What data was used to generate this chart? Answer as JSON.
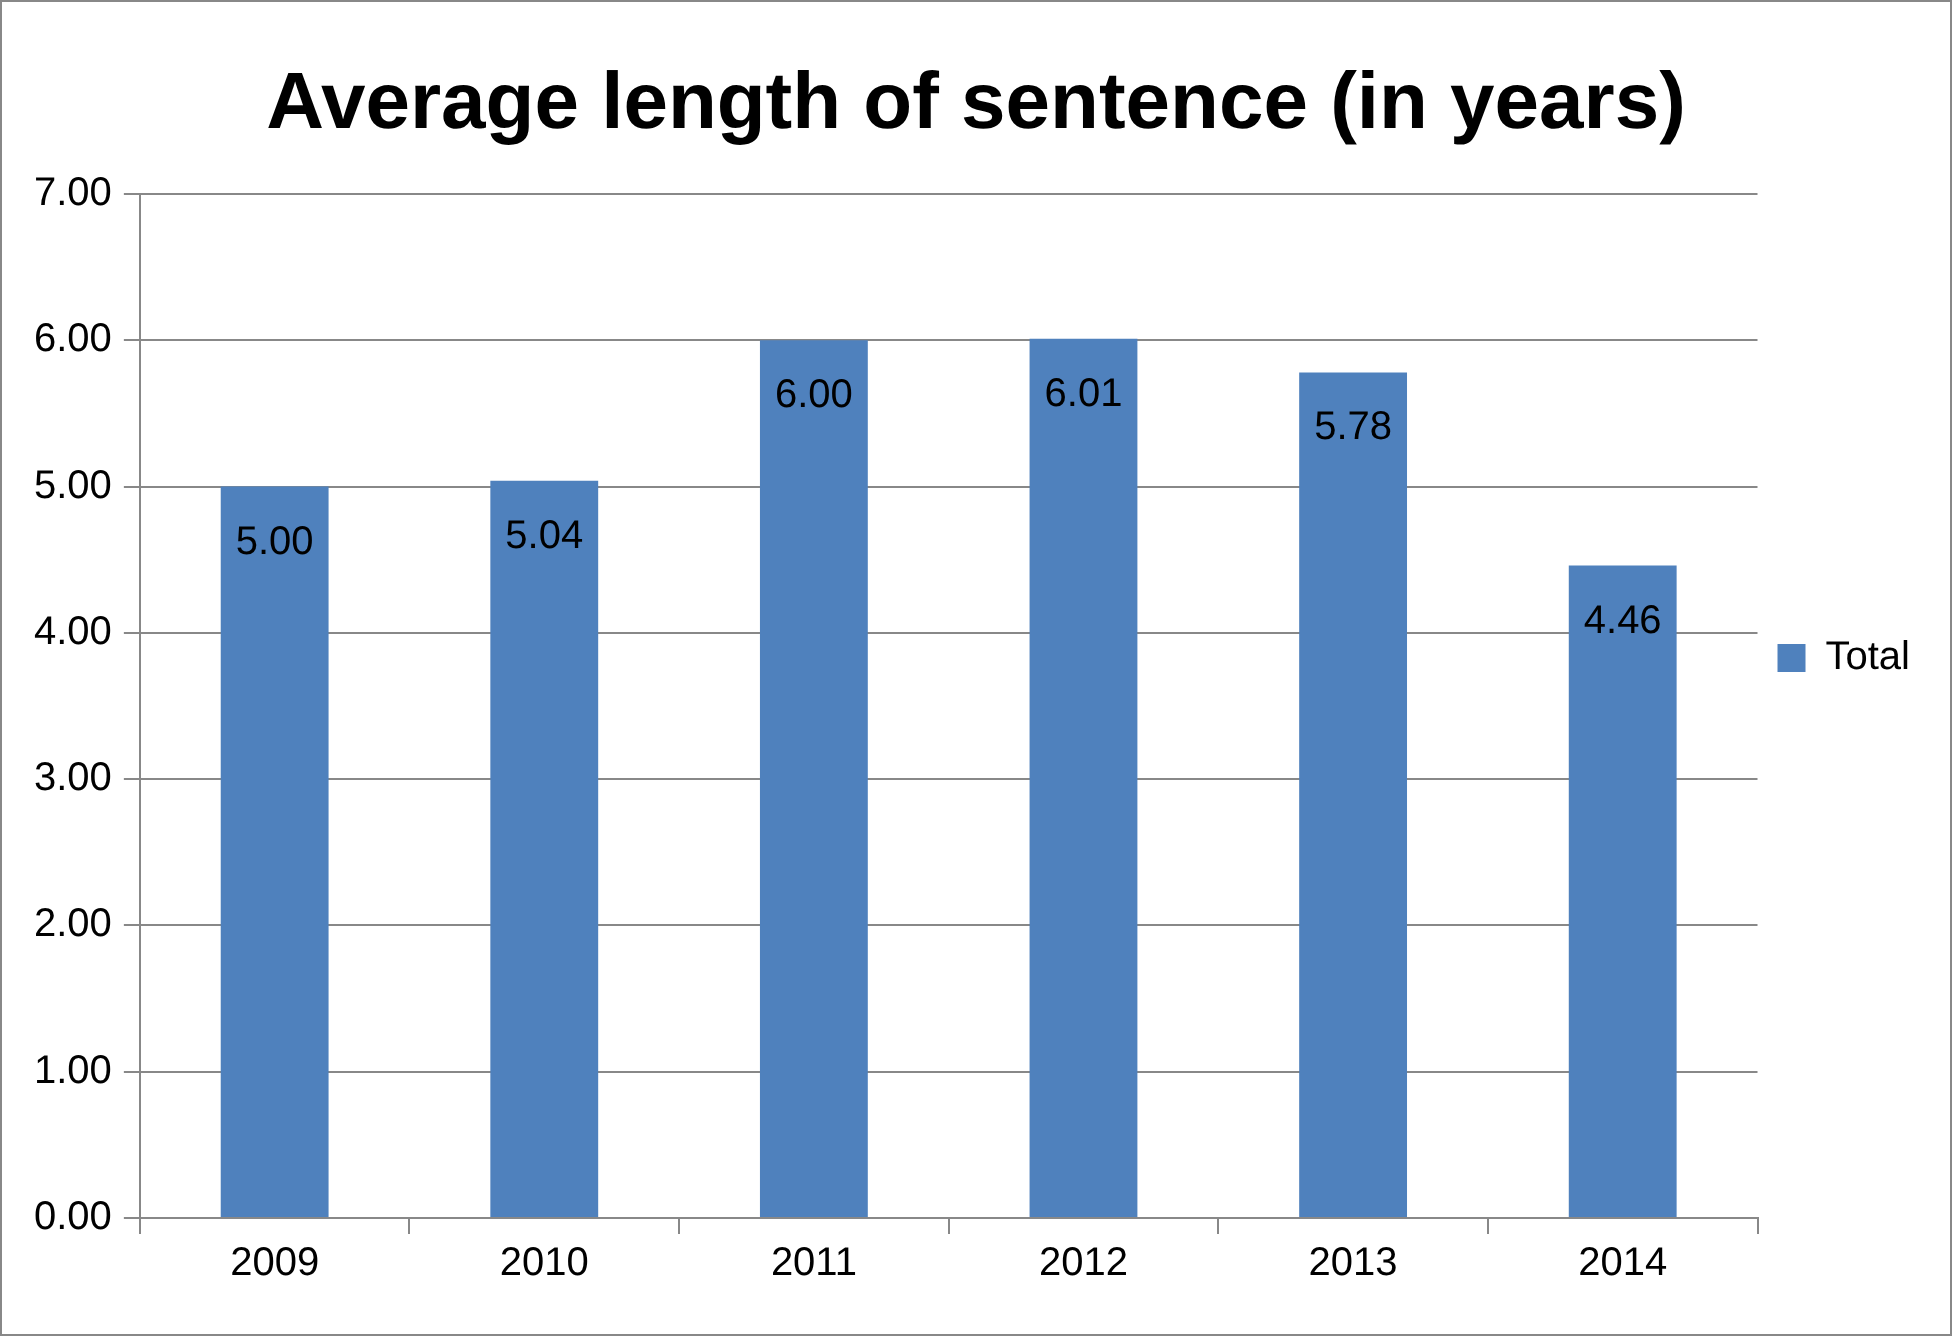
{
  "chart_data": {
    "type": "bar",
    "title": "Average length of sentence (in years)",
    "categories": [
      "2009",
      "2010",
      "2011",
      "2012",
      "2013",
      "2014"
    ],
    "series": [
      {
        "name": "Total",
        "color": "#4f81bd",
        "values": [
          5.0,
          5.04,
          6.0,
          6.01,
          5.78,
          4.46
        ],
        "value_labels": [
          "5.00",
          "5.04",
          "6.00",
          "6.01",
          "5.78",
          "4.46"
        ]
      }
    ],
    "ylim": [
      0,
      7
    ],
    "yticks": [
      {
        "value": 0,
        "label": "0.00"
      },
      {
        "value": 1,
        "label": "1.00"
      },
      {
        "value": 2,
        "label": "2.00"
      },
      {
        "value": 3,
        "label": "3.00"
      },
      {
        "value": 4,
        "label": "4.00"
      },
      {
        "value": 5,
        "label": "5.00"
      },
      {
        "value": 6,
        "label": "6.00"
      },
      {
        "value": 7,
        "label": "7.00"
      }
    ],
    "grid": "y",
    "legend": "right"
  }
}
